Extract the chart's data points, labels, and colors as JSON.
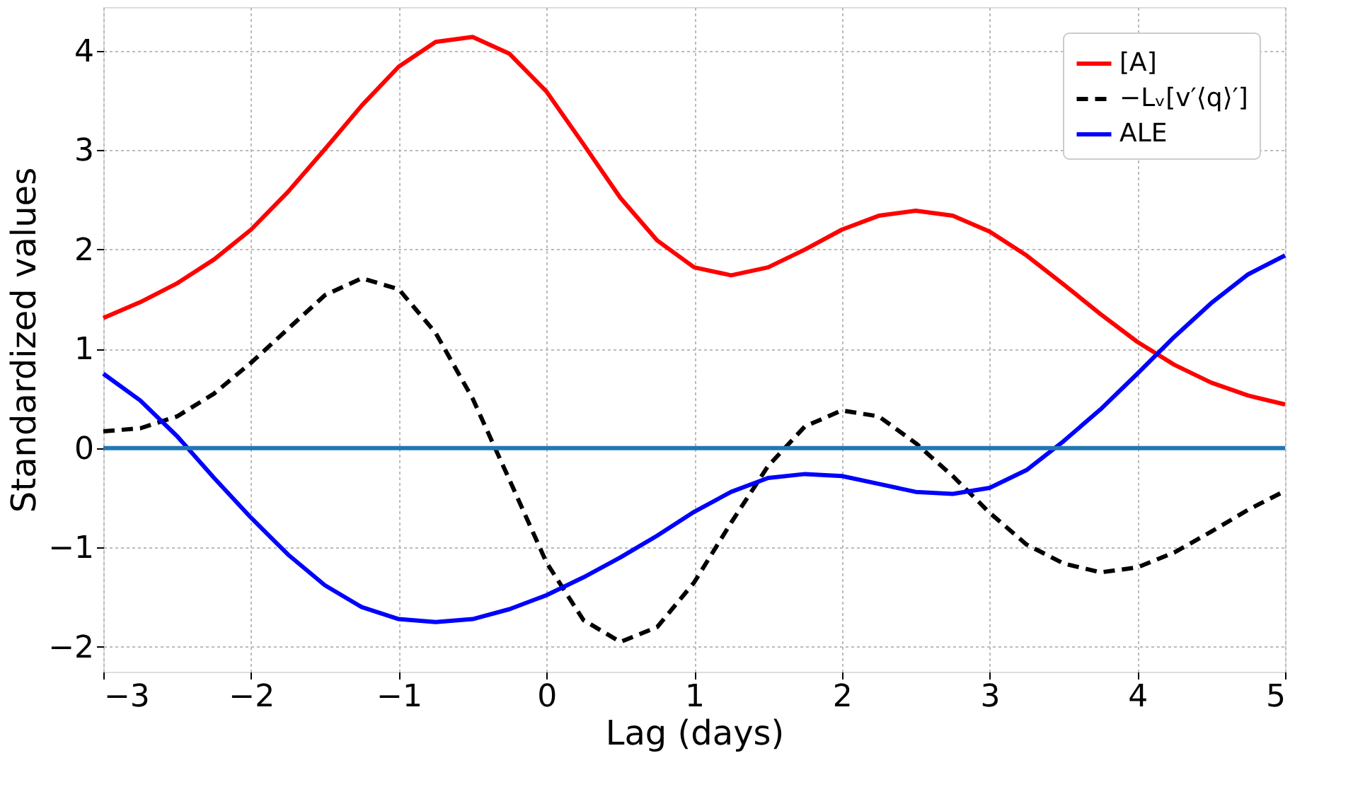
{
  "chart_data": {
    "type": "line",
    "xlabel": "Lag (days)",
    "ylabel": "Standardized values",
    "x": [
      -3,
      -2.75,
      -2.5,
      -2.25,
      -2,
      -1.75,
      -1.5,
      -1.25,
      -1,
      -0.75,
      -0.5,
      -0.25,
      0,
      0.25,
      0.5,
      0.75,
      1,
      1.25,
      1.5,
      1.75,
      2,
      2.25,
      2.5,
      2.75,
      3,
      3.25,
      3.5,
      3.75,
      4,
      4.25,
      4.5,
      4.75,
      5
    ],
    "series": [
      {
        "name": "[A]",
        "color": "#ff0000",
        "line_style": "solid",
        "values": [
          1.31,
          1.47,
          1.66,
          1.9,
          2.2,
          2.58,
          3.01,
          3.45,
          3.84,
          4.09,
          4.14,
          3.97,
          3.59,
          3.06,
          2.52,
          2.09,
          1.82,
          1.74,
          1.82,
          2.0,
          2.2,
          2.34,
          2.39,
          2.34,
          2.18,
          1.94,
          1.65,
          1.35,
          1.07,
          0.84,
          0.66,
          0.53,
          0.44
        ]
      },
      {
        "name": "−Lᵥ[v′⟨q⟩′]",
        "color": "#000000",
        "line_style": "dashed",
        "values": [
          0.17,
          0.2,
          0.32,
          0.55,
          0.86,
          1.2,
          1.54,
          1.71,
          1.6,
          1.16,
          0.5,
          -0.32,
          -1.15,
          -1.73,
          -1.95,
          -1.8,
          -1.35,
          -0.75,
          -0.18,
          0.22,
          0.38,
          0.32,
          0.05,
          -0.28,
          -0.65,
          -0.97,
          -1.16,
          -1.25,
          -1.2,
          -1.05,
          -0.84,
          -0.62,
          -0.43
        ]
      },
      {
        "name": "ALE",
        "color": "#0000ff",
        "line_style": "solid",
        "values": [
          0.75,
          0.48,
          0.12,
          -0.3,
          -0.7,
          -1.07,
          -1.38,
          -1.6,
          -1.72,
          -1.75,
          -1.72,
          -1.62,
          -1.48,
          -1.3,
          -1.1,
          -0.88,
          -0.64,
          -0.44,
          -0.3,
          -0.26,
          -0.28,
          -0.36,
          -0.44,
          -0.46,
          -0.4,
          -0.22,
          0.07,
          0.39,
          0.75,
          1.12,
          1.46,
          1.75,
          1.94
        ]
      }
    ],
    "ref_lines": [
      {
        "axis": "y",
        "value": 0,
        "color": "#1f77b4"
      }
    ],
    "xlim": [
      -3,
      5
    ],
    "xticks": [
      -3,
      -2,
      -1,
      0,
      1,
      2,
      3,
      4,
      5
    ],
    "ylim": [
      -2.25,
      4.44
    ],
    "yticks": [
      -2,
      -1,
      0,
      1,
      2,
      3,
      4
    ],
    "grid": true,
    "legend": "top right",
    "marker": "none"
  }
}
